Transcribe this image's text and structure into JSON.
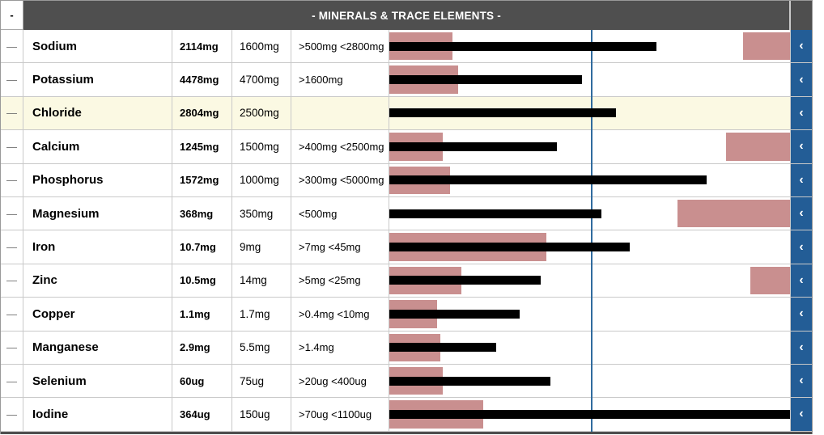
{
  "section": {
    "title": "- MINERALS & TRACE ELEMENTS -",
    "corner_glyph": "-"
  },
  "controls": {
    "row_dash_glyph": "—",
    "chevron_glyph": "‹"
  },
  "colors": {
    "header_bg": "#4f4f4f",
    "header_text": "#ffffff",
    "out_of_range_band": "#c98f8f",
    "value_bar": "#000000",
    "target_line": "#306b9e",
    "chevron_button": "#235d96",
    "highlighted_row_bg": "#fbf9e3",
    "row_divider": "#c9c9c9"
  },
  "bar_axis": {
    "target_line_pct": 50.4,
    "note_full_width_equals_pct_of_target": 198.4
  },
  "rows": [
    {
      "name": "Sodium",
      "amount": "2114mg",
      "target": "1600mg",
      "range": ">500mg <2800mg",
      "highlighted": false,
      "bar": {
        "value_pct": 66.6,
        "low_pct": 15.8,
        "high_start_pct": 88.2
      }
    },
    {
      "name": "Potassium",
      "amount": "4478mg",
      "target": "4700mg",
      "range": ">1600mg",
      "highlighted": false,
      "bar": {
        "value_pct": 48.0,
        "low_pct": 17.2,
        "high_start_pct": null
      }
    },
    {
      "name": "Chloride",
      "amount": "2804mg",
      "target": "2500mg",
      "range": "",
      "highlighted": true,
      "bar": {
        "value_pct": 56.5,
        "low_pct": null,
        "high_start_pct": null
      }
    },
    {
      "name": "Calcium",
      "amount": "1245mg",
      "target": "1500mg",
      "range": ">400mg <2500mg",
      "highlighted": false,
      "bar": {
        "value_pct": 41.8,
        "low_pct": 13.4,
        "high_start_pct": 84.0
      }
    },
    {
      "name": "Phosphorus",
      "amount": "1572mg",
      "target": "1000mg",
      "range": ">300mg <5000mg",
      "highlighted": false,
      "bar": {
        "value_pct": 79.2,
        "low_pct": 15.1,
        "high_start_pct": null
      }
    },
    {
      "name": "Magnesium",
      "amount": "368mg",
      "target": "350mg",
      "range": "<500mg",
      "highlighted": false,
      "bar": {
        "value_pct": 53.0,
        "low_pct": null,
        "high_start_pct": 72.0
      }
    },
    {
      "name": "Iron",
      "amount": "10.7mg",
      "target": "9mg",
      "range": ">7mg <45mg",
      "highlighted": false,
      "bar": {
        "value_pct": 59.9,
        "low_pct": 39.2,
        "high_start_pct": null
      }
    },
    {
      "name": "Zinc",
      "amount": "10.5mg",
      "target": "14mg",
      "range": ">5mg <25mg",
      "highlighted": false,
      "bar": {
        "value_pct": 37.8,
        "low_pct": 18.0,
        "high_start_pct": 90.0
      }
    },
    {
      "name": "Copper",
      "amount": "1.1mg",
      "target": "1.7mg",
      "range": ">0.4mg <10mg",
      "highlighted": false,
      "bar": {
        "value_pct": 32.6,
        "low_pct": 11.9,
        "high_start_pct": null
      }
    },
    {
      "name": "Manganese",
      "amount": "2.9mg",
      "target": "5.5mg",
      "range": ">1.4mg",
      "highlighted": false,
      "bar": {
        "value_pct": 26.6,
        "low_pct": 12.8,
        "high_start_pct": null
      }
    },
    {
      "name": "Selenium",
      "amount": "60ug",
      "target": "75ug",
      "range": ">20ug <400ug",
      "highlighted": false,
      "bar": {
        "value_pct": 40.3,
        "low_pct": 13.4,
        "high_start_pct": null
      }
    },
    {
      "name": "Iodine",
      "amount": "364ug",
      "target": "150ug",
      "range": ">70ug <1100ug",
      "highlighted": false,
      "bar": {
        "value_pct": 100.0,
        "low_pct": 23.5,
        "high_start_pct": null
      }
    }
  ]
}
